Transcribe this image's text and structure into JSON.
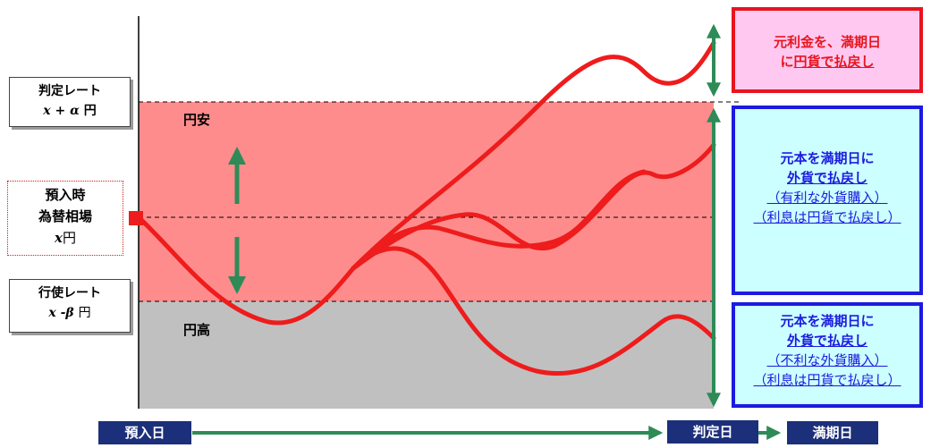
{
  "zones": {
    "yen_weak": "円安",
    "yen_strong": "円高"
  },
  "left_labels": {
    "judgment_rate": {
      "title": "判定レート",
      "formula_var": "x",
      "formula_rest": " + α ",
      "unit": "円"
    },
    "spot_rate": {
      "line1": "預入時",
      "line2": "為替相場",
      "var": "x",
      "unit": "円"
    },
    "exercise_rate": {
      "title": "行使レート",
      "formula_var": "x",
      "formula_rest": " -β ",
      "unit": "円"
    }
  },
  "outcomes": {
    "top": {
      "line1": "元利金を、満期日",
      "line2_prefix": "に",
      "line2_link": "円貨で払戻し"
    },
    "middle": {
      "line1": "元本を満期日に",
      "line2": "外貨で払戻し",
      "line3": "（有利な外貨購入）",
      "line4": "（利息は円貨で払戻し）"
    },
    "bottom": {
      "line1": "元本を満期日に",
      "line2": "外貨で払戻し",
      "line3": "（不利な外貨購入）",
      "line4": "（利息は円貨で払戻し）"
    }
  },
  "timeline": {
    "deposit_day": "預入日",
    "judgment_day": "判定日",
    "maturity_day": "満期日"
  },
  "colors": {
    "yen_weak_zone": "#ff8c8c",
    "yen_strong_zone": "#c0c0c0",
    "rate_path": "#ee1c1c",
    "arrow_green": "#2e8b57",
    "tag_navy": "#1c2f7a",
    "outcome_top_border": "#e8141e",
    "outcome_blue_border": "#1b1be0"
  },
  "chart_data": {
    "type": "line",
    "description_levels": [
      "判定レート x + α 円",
      "預入時為替相場 x 円",
      "行使レート x -β 円"
    ],
    "series": [
      {
        "scenario": "above_judgment_rate"
      },
      {
        "scenario": "between_rates"
      },
      {
        "scenario": "below_exercise_rate"
      }
    ]
  }
}
